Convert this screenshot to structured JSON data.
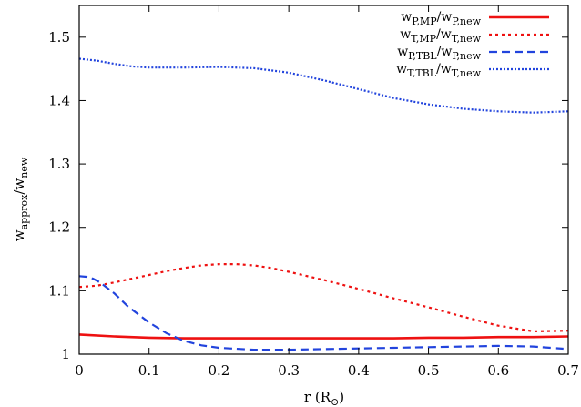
{
  "chart_data": {
    "type": "line",
    "title": "",
    "xlabel": {
      "main": "r (R",
      "sub": "⊙",
      "close": ")"
    },
    "ylabel": {
      "w1": "w",
      "s1": "approx",
      "mid": "/w",
      "s2": "new"
    },
    "xlim": [
      0,
      0.7
    ],
    "ylim": [
      1.0,
      1.55
    ],
    "xticks": [
      0,
      0.1,
      0.2,
      0.3,
      0.4,
      0.5,
      0.6,
      0.7
    ],
    "xtick_labels": [
      "0",
      "0.1",
      "0.2",
      "0.3",
      "0.4",
      "0.5",
      "0.6",
      "0.7"
    ],
    "yticks": [
      1.0,
      1.1,
      1.2,
      1.3,
      1.4,
      1.5
    ],
    "ytick_labels": [
      "1",
      "1.1",
      "1.2",
      "1.3",
      "1.4",
      "1.5"
    ],
    "grid": false,
    "legend_position": "top-right",
    "series": [
      {
        "label": {
          "w1": "w",
          "s1": "P,MP",
          "mid": "/w",
          "s2": "P,new"
        },
        "color": "#ee1111",
        "dash": "solid",
        "x": [
          0,
          0.05,
          0.1,
          0.15,
          0.2,
          0.25,
          0.3,
          0.35,
          0.4,
          0.45,
          0.5,
          0.55,
          0.6,
          0.65,
          0.7
        ],
        "y": [
          1.031,
          1.028,
          1.026,
          1.025,
          1.025,
          1.025,
          1.025,
          1.025,
          1.025,
          1.025,
          1.026,
          1.026,
          1.027,
          1.027,
          1.028
        ]
      },
      {
        "label": {
          "w1": "w",
          "s1": "T,MP",
          "mid": "/w",
          "s2": "T,new"
        },
        "color": "#ee1111",
        "dash": "dotted",
        "x": [
          0,
          0.025,
          0.05,
          0.075,
          0.1,
          0.125,
          0.15,
          0.175,
          0.2,
          0.225,
          0.25,
          0.275,
          0.3,
          0.35,
          0.4,
          0.45,
          0.5,
          0.55,
          0.6,
          0.65,
          0.7
        ],
        "y": [
          1.106,
          1.108,
          1.113,
          1.119,
          1.125,
          1.131,
          1.136,
          1.14,
          1.142,
          1.142,
          1.14,
          1.136,
          1.13,
          1.117,
          1.103,
          1.088,
          1.074,
          1.059,
          1.045,
          1.036,
          1.037
        ]
      },
      {
        "label": {
          "w1": "w",
          "s1": "P,TBL",
          "mid": "/w",
          "s2": "P,new"
        },
        "color": "#2244dd",
        "dash": "dashed",
        "x": [
          0,
          0.01,
          0.02,
          0.03,
          0.05,
          0.07,
          0.1,
          0.125,
          0.15,
          0.175,
          0.2,
          0.25,
          0.3,
          0.35,
          0.4,
          0.45,
          0.5,
          0.55,
          0.6,
          0.65,
          0.7
        ],
        "y": [
          1.123,
          1.122,
          1.119,
          1.113,
          1.096,
          1.075,
          1.05,
          1.033,
          1.021,
          1.014,
          1.01,
          1.007,
          1.007,
          1.008,
          1.009,
          1.01,
          1.011,
          1.012,
          1.013,
          1.012,
          1.008
        ]
      },
      {
        "label": {
          "w1": "w",
          "s1": "T,TBL",
          "mid": "/w",
          "s2": "T,new"
        },
        "color": "#2244dd",
        "dash": "dense-dotted",
        "x": [
          0,
          0.025,
          0.05,
          0.075,
          0.1,
          0.15,
          0.2,
          0.25,
          0.3,
          0.35,
          0.4,
          0.45,
          0.5,
          0.55,
          0.6,
          0.65,
          0.7
        ],
        "y": [
          1.466,
          1.463,
          1.458,
          1.454,
          1.452,
          1.452,
          1.453,
          1.451,
          1.444,
          1.432,
          1.418,
          1.404,
          1.394,
          1.387,
          1.383,
          1.381,
          1.383
        ]
      }
    ]
  }
}
